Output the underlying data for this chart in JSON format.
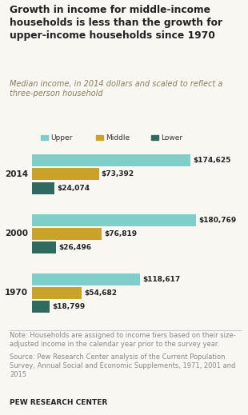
{
  "title": "Growth in income for middle-income\nhouseholds is less than the growth for\nupper-income households since 1970",
  "subtitle": "Median income, in 2014 dollars and scaled to reflect a\nthree-person household",
  "years": [
    "2014",
    "2000",
    "1970"
  ],
  "upper": [
    174625,
    180769,
    118617
  ],
  "middle": [
    73392,
    76819,
    54682
  ],
  "lower": [
    24074,
    26496,
    18799
  ],
  "upper_color": "#7ececa",
  "middle_color": "#c9a227",
  "lower_color": "#2e6b5e",
  "title_color": "#222222",
  "subtitle_color": "#8c7b5e",
  "note_text": "Note: Households are assigned to income tiers based on their size-\nadjusted income in the calendar year prior to the survey year.",
  "source_text": "Source: Pew Research Center analysis of the Current Population\nSurvey, Annual Social and Economic Supplements, 1971, 2001 and\n2015",
  "footer_text": "PEW RESEARCH CENTER",
  "legend_labels": [
    "Upper",
    "Middle",
    "Lower"
  ],
  "background_color": "#f9f7f1",
  "note_color": "#888888",
  "max_val": 190000
}
